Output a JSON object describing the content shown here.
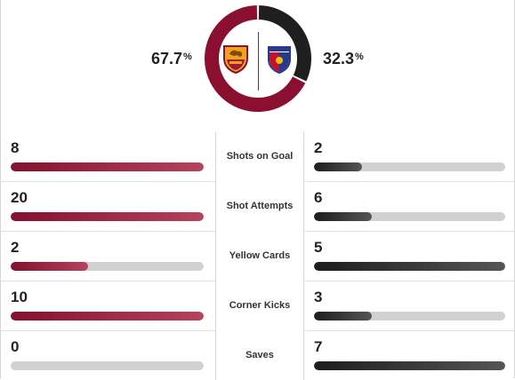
{
  "possession": {
    "home_percent_value": 67.7,
    "away_percent_value": 32.3,
    "home_text": "67.7",
    "away_text": "32.3",
    "symbol": "%",
    "home_color": "#8b1030",
    "away_color": "#1f1f1f"
  },
  "teams": {
    "home": {
      "logo": "as-roma-crest-icon",
      "color": "#8b1030"
    },
    "away": {
      "logo": "viktoria-plzen-crest-icon",
      "color": "#1f1f1f"
    }
  },
  "stats": [
    {
      "label": "Shots on Goal",
      "home": "8",
      "away": "2",
      "home_fill": 1.0,
      "away_fill": 0.25
    },
    {
      "label": "Shot Attempts",
      "home": "20",
      "away": "6",
      "home_fill": 1.0,
      "away_fill": 0.3
    },
    {
      "label": "Yellow Cards",
      "home": "2",
      "away": "5",
      "home_fill": 0.4,
      "away_fill": 1.0
    },
    {
      "label": "Corner Kicks",
      "home": "10",
      "away": "3",
      "home_fill": 1.0,
      "away_fill": 0.3
    },
    {
      "label": "Saves",
      "home": "0",
      "away": "7",
      "home_fill": 0.0,
      "away_fill": 1.0
    }
  ]
}
